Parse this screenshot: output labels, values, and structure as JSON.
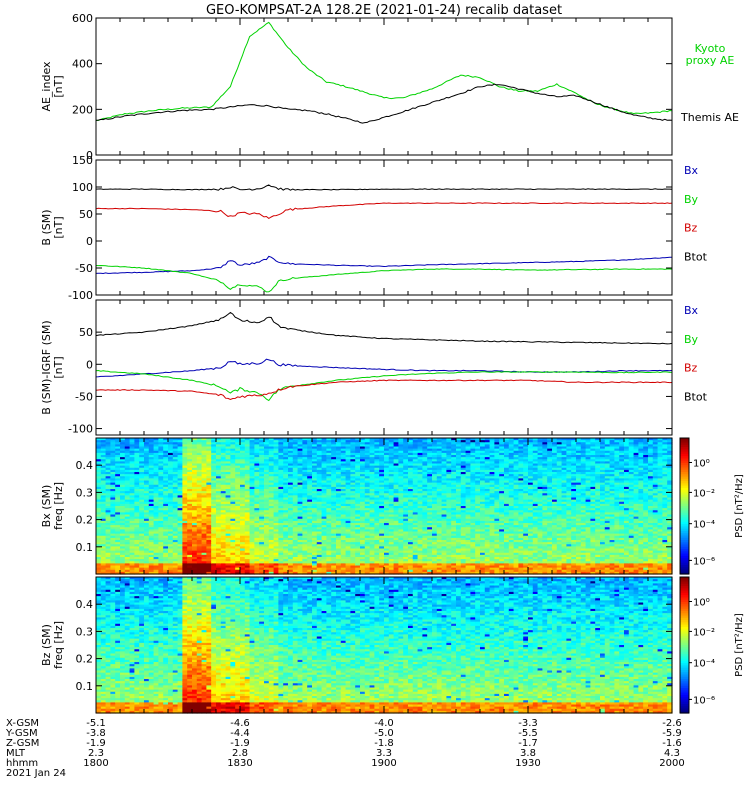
{
  "title": "GEO-KOMPSAT-2A 128.2E (2021-01-24) recalib dataset",
  "colors": {
    "black": "#000000",
    "green": "#00d200",
    "red": "#d20000",
    "blue": "#0000b4"
  },
  "chart_data": [
    {
      "type": "line",
      "panel": "ae",
      "ylabel": "AE_index\n[nT]",
      "ylim": [
        0,
        600
      ],
      "yticks": [
        "0",
        "200",
        "400",
        "600"
      ],
      "xlim": [
        0,
        120
      ],
      "series": [
        {
          "name": "Kyoto\nproxy AE",
          "color": "green",
          "x": [
            0,
            6,
            12,
            18,
            24,
            28,
            32,
            36,
            40,
            44,
            48,
            52,
            56,
            60,
            64,
            70,
            76,
            80,
            84,
            88,
            92,
            96,
            100,
            104,
            108,
            112,
            116,
            120
          ],
          "y": [
            150,
            180,
            195,
            205,
            210,
            300,
            520,
            580,
            470,
            380,
            320,
            300,
            275,
            250,
            250,
            290,
            350,
            340,
            300,
            280,
            280,
            310,
            270,
            225,
            200,
            180,
            185,
            195
          ]
        },
        {
          "name": "Themis AE",
          "color": "black",
          "x": [
            0,
            6,
            12,
            18,
            24,
            28,
            32,
            36,
            40,
            44,
            48,
            52,
            56,
            60,
            64,
            70,
            76,
            80,
            84,
            88,
            92,
            96,
            100,
            104,
            108,
            112,
            116,
            120
          ],
          "y": [
            150,
            170,
            185,
            195,
            200,
            210,
            220,
            215,
            200,
            195,
            180,
            160,
            140,
            165,
            190,
            230,
            270,
            300,
            310,
            290,
            270,
            255,
            260,
            230,
            200,
            175,
            160,
            150
          ]
        }
      ]
    },
    {
      "type": "line",
      "panel": "bsm",
      "ylabel": "B (SM)\n[nT]",
      "ylim": [
        -100,
        150
      ],
      "yticks": [
        "-100",
        "-50",
        "0",
        "50",
        "100",
        "150"
      ],
      "xlim": [
        0,
        120
      ],
      "series": [
        {
          "name": "Bx",
          "color": "blue",
          "x": [
            0,
            10,
            20,
            26,
            28,
            30,
            34,
            36,
            38,
            40,
            50,
            60,
            70,
            80,
            90,
            100,
            110,
            120
          ],
          "y": [
            -60,
            -58,
            -55,
            -50,
            -35,
            -45,
            -40,
            -30,
            -38,
            -42,
            -45,
            -47,
            -44,
            -42,
            -40,
            -38,
            -35,
            -30
          ]
        },
        {
          "name": "By",
          "color": "green",
          "x": [
            0,
            10,
            20,
            26,
            28,
            30,
            34,
            36,
            38,
            40,
            50,
            60,
            70,
            80,
            90,
            100,
            110,
            120
          ],
          "y": [
            -45,
            -50,
            -60,
            -75,
            -88,
            -80,
            -85,
            -95,
            -75,
            -70,
            -62,
            -55,
            -52,
            -52,
            -54,
            -53,
            -52,
            -52
          ]
        },
        {
          "name": "Bz",
          "color": "red",
          "x": [
            0,
            10,
            20,
            26,
            28,
            30,
            34,
            36,
            38,
            40,
            50,
            60,
            70,
            80,
            90,
            100,
            110,
            120
          ],
          "y": [
            60,
            60,
            58,
            55,
            45,
            52,
            50,
            42,
            50,
            58,
            65,
            70,
            70,
            70,
            70,
            70,
            70,
            70
          ]
        },
        {
          "name": "Btot",
          "color": "black",
          "x": [
            0,
            10,
            20,
            26,
            28,
            30,
            34,
            36,
            38,
            40,
            50,
            60,
            70,
            80,
            90,
            100,
            110,
            120
          ],
          "y": [
            96,
            96,
            95,
            96,
            100,
            95,
            97,
            104,
            97,
            95,
            95,
            96,
            96,
            96,
            96,
            96,
            96,
            96
          ]
        }
      ]
    },
    {
      "type": "line",
      "panel": "bdiff",
      "ylabel": "B (SM)-IGRF (SM)\n[nT]",
      "ylim": [
        -110,
        100
      ],
      "yticks": [
        "-100",
        "-50",
        "0",
        "50"
      ],
      "xlim": [
        0,
        120
      ],
      "series": [
        {
          "name": "Bx",
          "color": "blue",
          "x": [
            0,
            10,
            20,
            26,
            28,
            30,
            34,
            36,
            38,
            40,
            50,
            60,
            70,
            80,
            90,
            100,
            110,
            120
          ],
          "y": [
            -20,
            -15,
            -10,
            -5,
            5,
            0,
            2,
            8,
            0,
            -2,
            -5,
            -8,
            -10,
            -10,
            -12,
            -12,
            -10,
            -10
          ]
        },
        {
          "name": "By",
          "color": "green",
          "x": [
            0,
            10,
            20,
            26,
            28,
            30,
            34,
            36,
            38,
            40,
            50,
            60,
            70,
            80,
            90,
            100,
            110,
            120
          ],
          "y": [
            -10,
            -15,
            -25,
            -35,
            -45,
            -38,
            -45,
            -55,
            -40,
            -35,
            -25,
            -18,
            -14,
            -12,
            -12,
            -12,
            -13,
            -12
          ]
        },
        {
          "name": "Bz",
          "color": "red",
          "x": [
            0,
            10,
            20,
            26,
            28,
            30,
            34,
            36,
            38,
            40,
            50,
            60,
            70,
            80,
            90,
            100,
            110,
            120
          ],
          "y": [
            -40,
            -40,
            -42,
            -48,
            -55,
            -50,
            -48,
            -45,
            -40,
            -35,
            -28,
            -25,
            -25,
            -25,
            -25,
            -28,
            -28,
            -28
          ]
        },
        {
          "name": "Btot",
          "color": "black",
          "x": [
            0,
            10,
            20,
            26,
            28,
            30,
            34,
            36,
            38,
            40,
            50,
            60,
            70,
            80,
            90,
            100,
            110,
            120
          ],
          "y": [
            45,
            50,
            60,
            70,
            80,
            68,
            65,
            75,
            60,
            55,
            45,
            40,
            38,
            36,
            35,
            34,
            33,
            32
          ]
        }
      ]
    },
    {
      "type": "heatmap",
      "panel": "specx",
      "ylabel": "Bx (SM)\nfreq [Hz]",
      "yticks": [
        "0.1",
        "0.2",
        "0.3",
        "0.4"
      ],
      "ylim": [
        0,
        0.5
      ],
      "xlim": [
        0,
        120
      ],
      "colorbar_label": "PSD [nT²/Hz]",
      "colorbar_ticks": [
        "10⁰",
        "10⁻²",
        "10⁻⁴",
        "10⁻⁶"
      ]
    },
    {
      "type": "heatmap",
      "panel": "specz",
      "ylabel": "Bz (SM)\nfreq [Hz]",
      "yticks": [
        "0.1",
        "0.2",
        "0.3",
        "0.4"
      ],
      "ylim": [
        0,
        0.5
      ],
      "xlim": [
        0,
        120
      ],
      "colorbar_label": "PSD [nT²/Hz]",
      "colorbar_ticks": [
        "10⁰",
        "10⁻²",
        "10⁻⁴",
        "10⁻⁶"
      ]
    }
  ],
  "xaxis": {
    "rows": [
      {
        "label": "X-GSM",
        "values": [
          "-5.1",
          "-4.6",
          "-4.0",
          "-3.3",
          "-2.6"
        ]
      },
      {
        "label": "Y-GSM",
        "values": [
          "-3.8",
          "-4.4",
          "-5.0",
          "-5.5",
          "-5.9"
        ]
      },
      {
        "label": "Z-GSM",
        "values": [
          "-1.9",
          "-1.9",
          "-1.8",
          "-1.7",
          "-1.6"
        ]
      },
      {
        "label": "MLT",
        "values": [
          "2.3",
          "2.8",
          "3.3",
          "3.8",
          "4.3"
        ]
      },
      {
        "label": "hhmm",
        "values": [
          "1800",
          "1830",
          "1900",
          "1930",
          "2000"
        ]
      }
    ],
    "date": "2021 Jan 24"
  }
}
